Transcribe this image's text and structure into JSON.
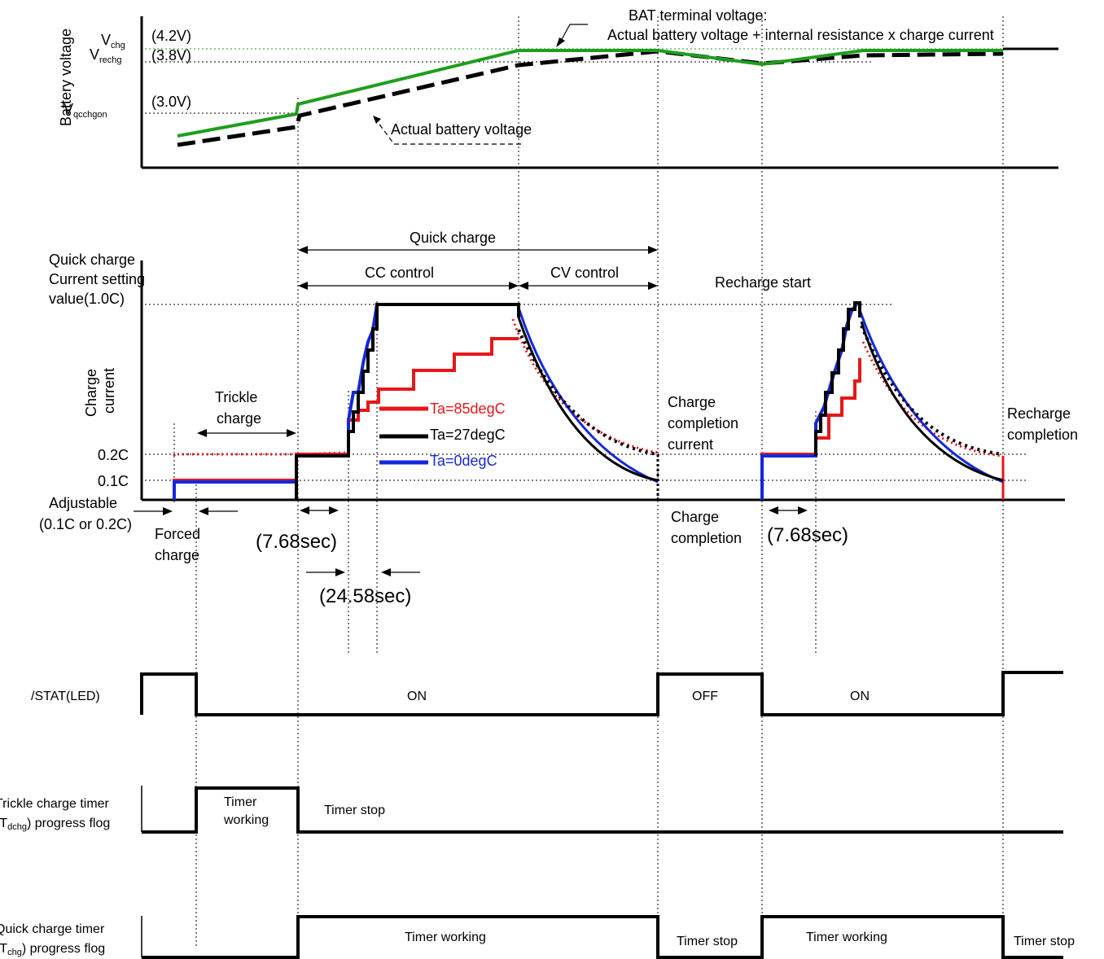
{
  "top_chart": {
    "ylabel": "Battery voltage",
    "levels": [
      {
        "symbol": "V",
        "sub": "chg",
        "value": "(4.2V)"
      },
      {
        "symbol": "V",
        "sub": "rechg",
        "value": "(3.8V)"
      },
      {
        "symbol": "V",
        "sub": "qcchgon",
        "value": "(3.0V)"
      }
    ],
    "bat_terminal_label_1": "BAT terminal voltage:",
    "bat_terminal_label_2": "Actual battery voltage + internal resistance x charge current",
    "actual_label": "Actual battery voltage",
    "colors": {
      "terminal": "#1e9e1e",
      "actual": "#000000"
    }
  },
  "mid_chart": {
    "ylabel_1": "Charge",
    "ylabel_2": "current",
    "setting_1": "Quick charge",
    "setting_2": "Current setting",
    "setting_3": "value(1.0C)",
    "y_02": "0.2C",
    "y_01": "0.1C",
    "adjustable_1": "Adjustable",
    "adjustable_2": "(0.1C or 0.2C)",
    "quick_charge": "Quick charge",
    "cc_control": "CC control",
    "cv_control": "CV control",
    "recharge_start": "Recharge start",
    "trickle_1": "Trickle",
    "trickle_2": "charge",
    "forced_1": "Forced",
    "forced_2": "charge",
    "t768_a": "(7.68sec)",
    "t2458": "(24.58sec)",
    "t768_b": "(7.68sec)",
    "ccc_1": "Charge",
    "ccc_2": "completion",
    "ccc_3": "current",
    "cc_1": "Charge",
    "cc_2": "completion",
    "rc_1": "Recharge",
    "rc_2": "completion",
    "legend": [
      {
        "name": "Ta=85degC",
        "color": "#e8161a"
      },
      {
        "name": "Ta=27degC",
        "color": "#000000"
      },
      {
        "name": "Ta=0degC",
        "color": "#1428d8"
      }
    ]
  },
  "stat": {
    "label": "/STAT(LED)",
    "on_1": "ON",
    "off": "OFF",
    "on_2": "ON"
  },
  "trickle_timer": {
    "label_1": "Trickle charge timer",
    "label_2_pre": "(T",
    "label_2_sub": "dchg",
    "label_2_post": ") progress flog",
    "working_1": "Timer",
    "working_2": "working",
    "stop": "Timer stop"
  },
  "quick_timer": {
    "label_1": "Quick charge timer",
    "label_2_pre": "(T",
    "label_2_sub": "chg",
    "label_2_post": ") progress flog",
    "working_1": "Timer working",
    "stop_1": "Timer stop",
    "working_2": "Timer working",
    "stop_2": "Timer stop"
  }
}
